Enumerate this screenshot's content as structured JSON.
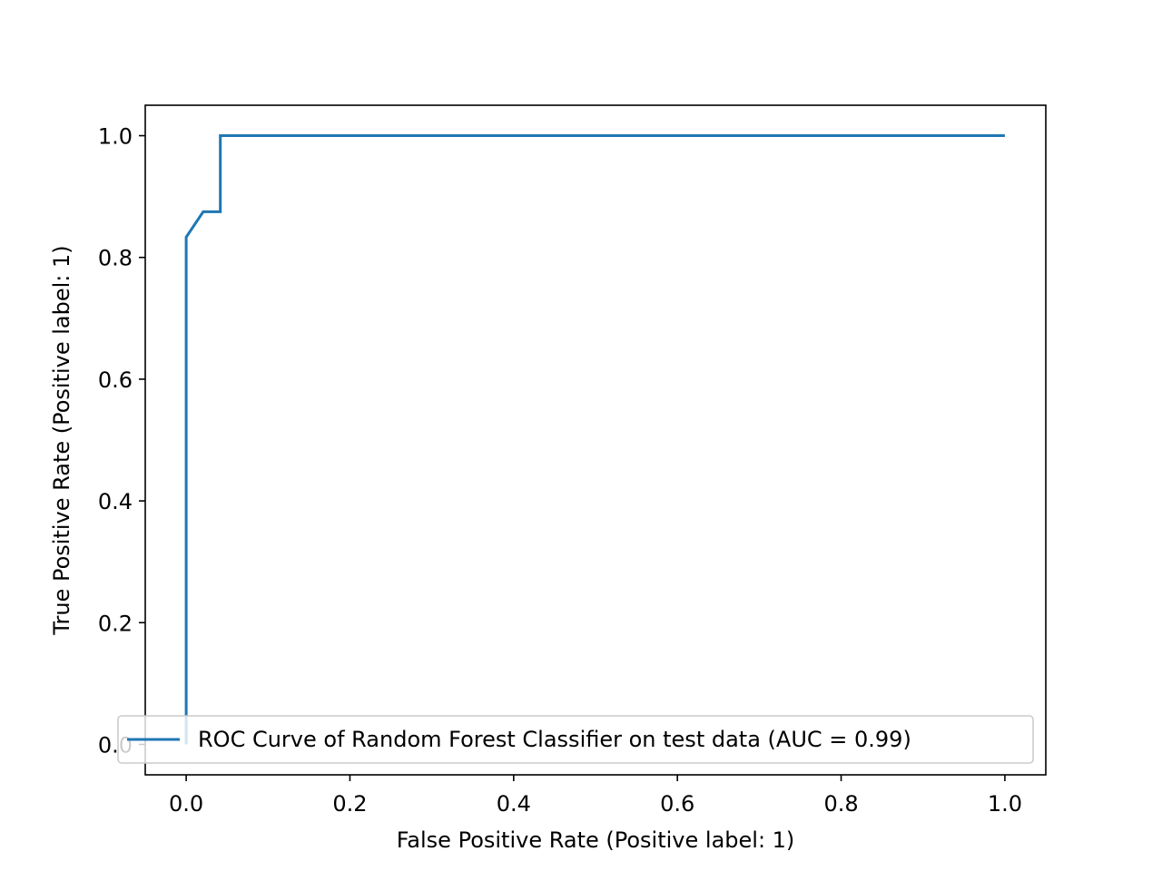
{
  "chart_data": {
    "type": "line",
    "title": "",
    "xlabel": "False Positive Rate (Positive label: 1)",
    "ylabel": "True Positive Rate (Positive label: 1)",
    "xlim": [
      -0.05,
      1.05
    ],
    "ylim": [
      -0.05,
      1.05
    ],
    "xticks": [
      0.0,
      0.2,
      0.4,
      0.6,
      0.8,
      1.0
    ],
    "xtick_labels": [
      "0.0",
      "0.2",
      "0.4",
      "0.6",
      "0.8",
      "1.0"
    ],
    "yticks": [
      0.0,
      0.2,
      0.4,
      0.6,
      0.8,
      1.0
    ],
    "ytick_labels": [
      "0.0",
      "0.2",
      "0.4",
      "0.6",
      "0.8",
      "1.0"
    ],
    "grid": false,
    "legend": {
      "placement": "lower-right"
    },
    "series": [
      {
        "name": "ROC Curve of Random Forest Classifier on test data (AUC = 0.99)",
        "color": "#1f77b4",
        "x": [
          0.0,
          0.0,
          0.0,
          0.0208,
          0.0417,
          0.0417,
          0.0417,
          1.0
        ],
        "y": [
          0.0,
          0.0417,
          0.8333,
          0.875,
          0.875,
          0.9583,
          1.0,
          1.0
        ]
      }
    ]
  }
}
